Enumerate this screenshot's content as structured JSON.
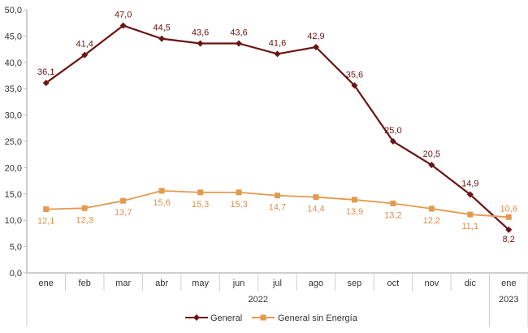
{
  "chart_data": {
    "type": "line",
    "title": "",
    "xlabel": "",
    "ylabel": "",
    "categories": [
      "ene",
      "feb",
      "mar",
      "abr",
      "may",
      "jun",
      "jul",
      "ago",
      "sep",
      "oct",
      "nov",
      "dic",
      "ene"
    ],
    "year_groups": [
      {
        "label": "2022",
        "span": 12
      },
      {
        "label": "2023",
        "span": 1
      }
    ],
    "ylim": [
      0,
      50
    ],
    "yticks": [
      "0,0",
      "5,0",
      "10,0",
      "15,0",
      "20,0",
      "25,0",
      "30,0",
      "35,0",
      "40,0",
      "45,0",
      "50,0"
    ],
    "grid": false,
    "legend_position": "bottom",
    "series": [
      {
        "name": "General",
        "color": "#6b1414",
        "marker": "diamond",
        "values": [
          36.1,
          41.4,
          47.0,
          44.5,
          43.6,
          43.6,
          41.6,
          42.9,
          35.6,
          25.0,
          20.5,
          14.9,
          8.2
        ],
        "labels": [
          "36,1",
          "41,4",
          "47,0",
          "44,5",
          "43,6",
          "43,6",
          "41,6",
          "42,9",
          "35,6",
          "25,0",
          "20,5",
          "14,9",
          "8,2"
        ]
      },
      {
        "name": "General sin Energía",
        "color": "#e39a4e",
        "marker": "square",
        "values": [
          12.1,
          12.3,
          13.7,
          15.6,
          15.3,
          15.3,
          14.7,
          14.4,
          13.9,
          13.2,
          12.2,
          11.1,
          10.6
        ],
        "labels": [
          "12,1",
          "12,3",
          "13,7",
          "15,6",
          "15,3",
          "15,3",
          "14,7",
          "14,4",
          "13,9",
          "13,2",
          "12,2",
          "11,1",
          "10,6"
        ]
      }
    ]
  }
}
